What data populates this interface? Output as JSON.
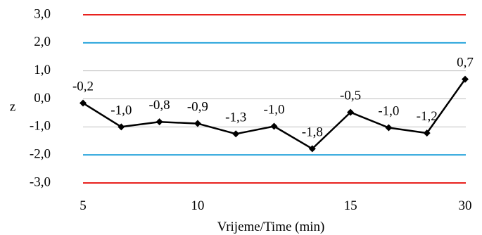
{
  "chart_data": {
    "type": "line",
    "title": "",
    "xlabel": "Vrijeme/Time (min)",
    "ylabel": "z",
    "ylim": [
      -3,
      3
    ],
    "y_ticks": [
      3,
      2,
      1,
      0,
      -1,
      -2,
      -3
    ],
    "y_tick_labels": [
      "3,0",
      "2,0",
      "1,0",
      "0,0",
      "-1,0",
      "-2,0",
      "-3,0"
    ],
    "grid": true,
    "legend": "none",
    "x_tick_labels": [
      {
        "label": "5",
        "index": 0
      },
      {
        "label": "10",
        "index": 3
      },
      {
        "label": "15",
        "index": 7
      },
      {
        "label": "30",
        "index": 10
      }
    ],
    "series": [
      {
        "values": [
          -0.15,
          -1.0,
          -0.82,
          -0.88,
          -1.25,
          -0.98,
          -1.78,
          -0.48,
          -1.03,
          -1.22,
          0.7
        ],
        "labels": [
          "-0,2",
          "-1,0",
          "-0,8",
          "-0,9",
          "-1,3",
          "-1,0",
          "-1,8",
          "-0,5",
          "-1,0",
          "-1,2",
          "0,7"
        ],
        "color": "#000000",
        "marker": "diamond"
      }
    ],
    "reference_lines": [
      {
        "y": 3,
        "color": "#e8211e"
      },
      {
        "y": -3,
        "color": "#e8211e"
      },
      {
        "y": 2,
        "color": "#2aa5dc"
      },
      {
        "y": -2,
        "color": "#2aa5dc"
      }
    ]
  }
}
